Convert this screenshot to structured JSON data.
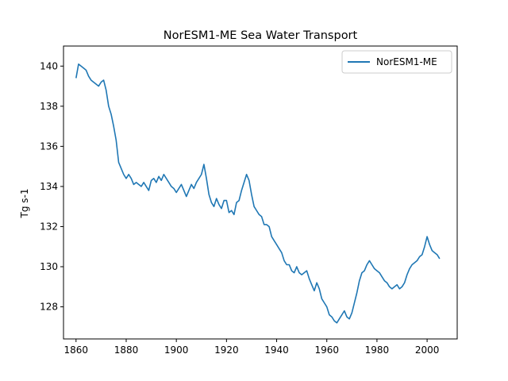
{
  "chart_data": {
    "type": "line",
    "title": "NorESM1-ME Sea Water Transport",
    "xlabel": "",
    "ylabel": "Tg s-1",
    "xlim": [
      1855,
      2012
    ],
    "ylim": [
      126.4,
      141.0
    ],
    "xticks": [
      1860,
      1880,
      1900,
      1920,
      1940,
      1960,
      1980,
      2000
    ],
    "yticks": [
      128,
      130,
      132,
      134,
      136,
      138,
      140
    ],
    "grid": false,
    "legend_position": "top-right",
    "series": [
      {
        "name": "NorESM1-ME",
        "color": "#1f77b4",
        "x": [
          1860,
          1861,
          1862,
          1863,
          1864,
          1865,
          1866,
          1867,
          1868,
          1869,
          1870,
          1871,
          1872,
          1873,
          1874,
          1875,
          1876,
          1877,
          1878,
          1879,
          1880,
          1881,
          1882,
          1883,
          1884,
          1885,
          1886,
          1887,
          1888,
          1889,
          1890,
          1891,
          1892,
          1893,
          1894,
          1895,
          1896,
          1897,
          1898,
          1899,
          1900,
          1901,
          1902,
          1903,
          1904,
          1905,
          1906,
          1907,
          1908,
          1909,
          1910,
          1911,
          1912,
          1913,
          1914,
          1915,
          1916,
          1917,
          1918,
          1919,
          1920,
          1921,
          1922,
          1923,
          1924,
          1925,
          1926,
          1927,
          1928,
          1929,
          1930,
          1931,
          1932,
          1933,
          1934,
          1935,
          1936,
          1937,
          1938,
          1939,
          1940,
          1941,
          1942,
          1943,
          1944,
          1945,
          1946,
          1947,
          1948,
          1949,
          1950,
          1951,
          1952,
          1953,
          1954,
          1955,
          1956,
          1957,
          1958,
          1959,
          1960,
          1961,
          1962,
          1963,
          1964,
          1965,
          1966,
          1967,
          1968,
          1969,
          1970,
          1971,
          1972,
          1973,
          1974,
          1975,
          1976,
          1977,
          1978,
          1979,
          1980,
          1981,
          1982,
          1983,
          1984,
          1985,
          1986,
          1987,
          1988,
          1989,
          1990,
          1991,
          1992,
          1993,
          1994,
          1995,
          1996,
          1997,
          1998,
          1999,
          2000,
          2001,
          2002,
          2003,
          2004,
          2005
        ],
        "values": [
          139.4,
          140.1,
          140.0,
          139.9,
          139.8,
          139.5,
          139.3,
          139.2,
          139.1,
          139.0,
          139.2,
          139.3,
          138.8,
          138.0,
          137.6,
          137.0,
          136.3,
          135.2,
          134.9,
          134.6,
          134.4,
          134.6,
          134.4,
          134.1,
          134.2,
          134.1,
          134.0,
          134.2,
          134.0,
          133.8,
          134.3,
          134.4,
          134.2,
          134.5,
          134.3,
          134.6,
          134.4,
          134.2,
          134.0,
          133.9,
          133.7,
          133.9,
          134.1,
          133.8,
          133.5,
          133.8,
          134.1,
          133.9,
          134.2,
          134.4,
          134.6,
          135.1,
          134.4,
          133.6,
          133.2,
          133.0,
          133.4,
          133.1,
          132.9,
          133.3,
          133.3,
          132.7,
          132.8,
          132.6,
          133.2,
          133.3,
          133.8,
          134.2,
          134.6,
          134.3,
          133.6,
          133.0,
          132.8,
          132.6,
          132.5,
          132.1,
          132.1,
          132.0,
          131.5,
          131.3,
          131.1,
          130.9,
          130.7,
          130.3,
          130.1,
          130.1,
          129.8,
          129.7,
          130.0,
          129.7,
          129.6,
          129.7,
          129.8,
          129.4,
          129.1,
          128.8,
          129.2,
          128.9,
          128.4,
          128.2,
          128.0,
          127.6,
          127.5,
          127.3,
          127.2,
          127.4,
          127.6,
          127.8,
          127.5,
          127.4,
          127.7,
          128.2,
          128.7,
          129.3,
          129.7,
          129.8,
          130.1,
          130.3,
          130.1,
          129.9,
          129.8,
          129.7,
          129.5,
          129.3,
          129.2,
          129.0,
          128.9,
          129.0,
          129.1,
          128.9,
          129.0,
          129.2,
          129.6,
          129.9,
          130.1,
          130.2,
          130.3,
          130.5,
          130.6,
          131.0,
          131.5,
          131.1,
          130.8,
          130.7,
          130.6,
          130.4
        ]
      }
    ]
  }
}
